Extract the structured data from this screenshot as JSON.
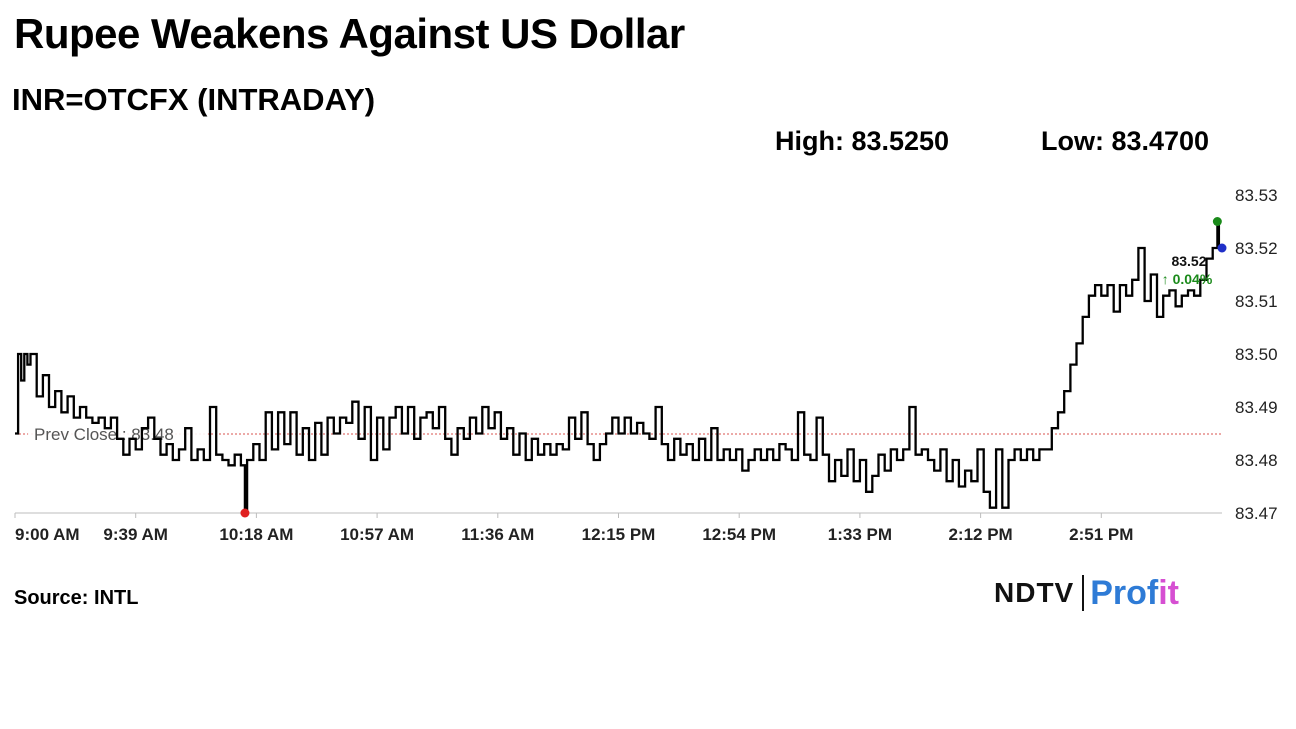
{
  "header": {
    "title": "Rupee Weakens Against US Dollar",
    "subtitle": "INR=OTCFX (INTRADAY)"
  },
  "stats": {
    "high": "High: 83.5250",
    "low": "Low: 83.4700"
  },
  "footer": {
    "source": "Source: INTL",
    "logo_main": "NDTV",
    "logo_accent": "Prof",
    "logo_accent_tail": "it"
  },
  "chart_data": {
    "type": "line",
    "title": "Rupee Weakens Against US Dollar",
    "subtitle": "INR=OTCFX (INTRADAY)",
    "xlabel": "",
    "ylabel": "",
    "x_tick_labels": [
      "9:00 AM",
      "9:39 AM",
      "10:18 AM",
      "10:57 AM",
      "11:36 AM",
      "12:15 PM",
      "12:54 PM",
      "1:33 PM",
      "2:12 PM",
      "2:51 PM"
    ],
    "x_tick_minutes": [
      0,
      39,
      78,
      117,
      156,
      195,
      234,
      273,
      312,
      351
    ],
    "x_range_minutes": [
      0,
      390
    ],
    "y_ticks": [
      83.47,
      83.48,
      83.49,
      83.5,
      83.51,
      83.52,
      83.53
    ],
    "y_tick_labels": [
      "83.47",
      "83.48",
      "83.49",
      "83.50",
      "83.51",
      "83.52",
      "83.53"
    ],
    "ylim": [
      83.47,
      83.53
    ],
    "grid": false,
    "colors": {
      "line": "#000000",
      "prev_close": "#d9534f",
      "low_marker": "#e02020",
      "high_marker": "#1a8a1a",
      "last_marker": "#1f2fc8",
      "change_text": "#1a8a1a"
    },
    "prev_close": {
      "value": 83.4849,
      "label": "Prev Close : 83.48"
    },
    "high": {
      "value": 83.525,
      "minute": 388.5
    },
    "low": {
      "value": 83.47,
      "minute": 74.3
    },
    "last": {
      "value": 83.52,
      "minute": 390,
      "label": "83.52",
      "change": "↑ 0.04%"
    },
    "series": [
      {
        "values": [
          [
            0,
            83.485
          ],
          [
            1,
            83.5
          ],
          [
            2,
            83.495
          ],
          [
            3,
            83.5
          ],
          [
            4,
            83.498
          ],
          [
            5,
            83.5
          ],
          [
            7,
            83.492
          ],
          [
            9,
            83.496
          ],
          [
            11,
            83.49
          ],
          [
            13,
            83.493
          ],
          [
            15,
            83.489
          ],
          [
            17,
            83.492
          ],
          [
            19,
            83.488
          ],
          [
            21,
            83.49
          ],
          [
            23,
            83.488
          ],
          [
            25,
            83.487
          ],
          [
            27,
            83.488
          ],
          [
            29,
            83.486
          ],
          [
            31,
            83.488
          ],
          [
            33,
            83.484
          ],
          [
            35,
            83.481
          ],
          [
            37,
            83.484
          ],
          [
            39,
            83.482
          ],
          [
            41,
            83.486
          ],
          [
            43,
            83.488
          ],
          [
            45,
            83.484
          ],
          [
            47,
            83.481
          ],
          [
            49,
            83.483
          ],
          [
            51,
            83.48
          ],
          [
            53,
            83.482
          ],
          [
            55,
            83.486
          ],
          [
            57,
            83.48
          ],
          [
            59,
            83.482
          ],
          [
            61,
            83.48
          ],
          [
            63,
            83.49
          ],
          [
            65,
            83.481
          ],
          [
            67,
            83.48
          ],
          [
            69,
            83.479
          ],
          [
            71,
            83.481
          ],
          [
            73,
            83.479
          ],
          [
            74.3,
            83.47
          ],
          [
            75,
            83.48
          ],
          [
            77,
            83.483
          ],
          [
            79,
            83.48
          ],
          [
            81,
            83.489
          ],
          [
            83,
            83.482
          ],
          [
            85,
            83.489
          ],
          [
            87,
            83.483
          ],
          [
            89,
            83.489
          ],
          [
            91,
            83.481
          ],
          [
            93,
            83.486
          ],
          [
            95,
            83.48
          ],
          [
            97,
            83.487
          ],
          [
            99,
            83.481
          ],
          [
            101,
            83.488
          ],
          [
            103,
            83.485
          ],
          [
            105,
            83.488
          ],
          [
            107,
            83.487
          ],
          [
            109,
            83.491
          ],
          [
            111,
            83.484
          ],
          [
            113,
            83.49
          ],
          [
            115,
            83.48
          ],
          [
            117,
            83.488
          ],
          [
            119,
            83.482
          ],
          [
            121,
            83.488
          ],
          [
            123,
            83.49
          ],
          [
            125,
            83.485
          ],
          [
            127,
            83.49
          ],
          [
            129,
            83.484
          ],
          [
            131,
            83.488
          ],
          [
            133,
            83.489
          ],
          [
            135,
            83.486
          ],
          [
            137,
            83.49
          ],
          [
            139,
            83.484
          ],
          [
            141,
            83.481
          ],
          [
            143,
            83.486
          ],
          [
            145,
            83.484
          ],
          [
            147,
            83.488
          ],
          [
            149,
            83.485
          ],
          [
            151,
            83.49
          ],
          [
            153,
            83.486
          ],
          [
            155,
            83.489
          ],
          [
            157,
            83.484
          ],
          [
            159,
            83.486
          ],
          [
            161,
            83.481
          ],
          [
            163,
            83.485
          ],
          [
            165,
            83.48
          ],
          [
            167,
            83.484
          ],
          [
            169,
            83.481
          ],
          [
            171,
            83.483
          ],
          [
            173,
            83.481
          ],
          [
            175,
            83.483
          ],
          [
            177,
            83.482
          ],
          [
            179,
            83.488
          ],
          [
            181,
            83.484
          ],
          [
            183,
            83.489
          ],
          [
            185,
            83.483
          ],
          [
            187,
            83.48
          ],
          [
            189,
            83.483
          ],
          [
            191,
            83.485
          ],
          [
            193,
            83.488
          ],
          [
            195,
            83.485
          ],
          [
            197,
            83.488
          ],
          [
            199,
            83.485
          ],
          [
            201,
            83.487
          ],
          [
            203,
            83.485
          ],
          [
            205,
            83.484
          ],
          [
            207,
            83.49
          ],
          [
            209,
            83.483
          ],
          [
            211,
            83.48
          ],
          [
            213,
            83.484
          ],
          [
            215,
            83.481
          ],
          [
            217,
            83.483
          ],
          [
            219,
            83.48
          ],
          [
            221,
            83.484
          ],
          [
            223,
            83.48
          ],
          [
            225,
            83.486
          ],
          [
            227,
            83.48
          ],
          [
            229,
            83.482
          ],
          [
            231,
            83.48
          ],
          [
            233,
            83.482
          ],
          [
            235,
            83.478
          ],
          [
            237,
            83.48
          ],
          [
            239,
            83.482
          ],
          [
            241,
            83.48
          ],
          [
            243,
            83.482
          ],
          [
            245,
            83.48
          ],
          [
            247,
            83.483
          ],
          [
            249,
            83.482
          ],
          [
            251,
            83.48
          ],
          [
            253,
            83.489
          ],
          [
            255,
            83.481
          ],
          [
            257,
            83.48
          ],
          [
            259,
            83.488
          ],
          [
            261,
            83.481
          ],
          [
            263,
            83.476
          ],
          [
            265,
            83.48
          ],
          [
            267,
            83.477
          ],
          [
            269,
            83.482
          ],
          [
            271,
            83.476
          ],
          [
            273,
            83.48
          ],
          [
            275,
            83.474
          ],
          [
            277,
            83.477
          ],
          [
            279,
            83.481
          ],
          [
            281,
            83.478
          ],
          [
            283,
            83.482
          ],
          [
            285,
            83.48
          ],
          [
            287,
            83.482
          ],
          [
            289,
            83.49
          ],
          [
            291,
            83.481
          ],
          [
            293,
            83.482
          ],
          [
            295,
            83.48
          ],
          [
            297,
            83.478
          ],
          [
            299,
            83.482
          ],
          [
            301,
            83.476
          ],
          [
            303,
            83.48
          ],
          [
            305,
            83.475
          ],
          [
            307,
            83.478
          ],
          [
            309,
            83.476
          ],
          [
            311,
            83.482
          ],
          [
            313,
            83.474
          ],
          [
            315,
            83.471
          ],
          [
            317,
            83.482
          ],
          [
            319,
            83.471
          ],
          [
            321,
            83.48
          ],
          [
            323,
            83.482
          ],
          [
            325,
            83.48
          ],
          [
            327,
            83.482
          ],
          [
            329,
            83.48
          ],
          [
            331,
            83.482
          ],
          [
            333,
            83.482
          ],
          [
            335,
            83.486
          ],
          [
            337,
            83.489
          ],
          [
            339,
            83.493
          ],
          [
            341,
            83.498
          ],
          [
            343,
            83.502
          ],
          [
            345,
            83.507
          ],
          [
            347,
            83.511
          ],
          [
            349,
            83.513
          ],
          [
            351,
            83.511
          ],
          [
            353,
            83.513
          ],
          [
            355,
            83.508
          ],
          [
            357,
            83.513
          ],
          [
            359,
            83.511
          ],
          [
            361,
            83.514
          ],
          [
            363,
            83.52
          ],
          [
            365,
            83.51
          ],
          [
            367,
            83.515
          ],
          [
            369,
            83.507
          ],
          [
            371,
            83.511
          ],
          [
            373,
            83.512
          ],
          [
            375,
            83.509
          ],
          [
            377,
            83.511
          ],
          [
            379,
            83.512
          ],
          [
            381,
            83.511
          ],
          [
            383,
            83.514
          ],
          [
            385,
            83.518
          ],
          [
            387,
            83.52
          ],
          [
            388.5,
            83.525
          ],
          [
            389,
            83.52
          ],
          [
            390,
            83.52
          ]
        ]
      }
    ]
  }
}
